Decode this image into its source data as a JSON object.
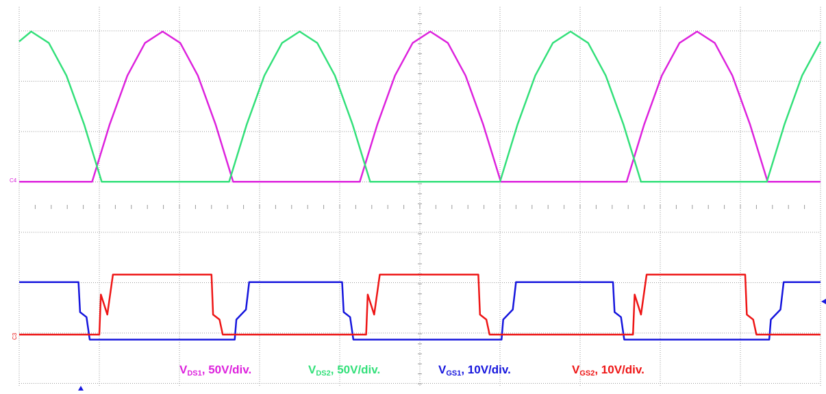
{
  "chart_data": {
    "type": "line",
    "xlim": [
      0,
      10
    ],
    "ylim": [
      -205,
      176
    ],
    "y2lim": [
      -10.5,
      65.8
    ],
    "grid": true,
    "channel_markers": [
      {
        "text": "C4",
        "color": "#d81ed8"
      },
      {
        "text": "C3",
        "color": "#e81010"
      }
    ],
    "series": [
      {
        "name": {
          "base": "V",
          "sub": "DS1",
          "rest": ", 50V/div."
        },
        "color": "#dd22dd",
        "x": [
          0,
          0.91,
          1.13,
          1.35,
          1.57,
          1.79,
          2.01,
          2.23,
          2.45,
          2.67,
          4.25,
          4.47,
          4.69,
          4.91,
          5.13,
          5.35,
          5.57,
          5.79,
          6.01,
          7.58,
          7.8,
          8.02,
          8.24,
          8.46,
          8.68,
          8.9,
          9.12,
          9.34,
          10
        ],
        "values": [
          0,
          0,
          57.4,
          106,
          138.6,
          150,
          138.6,
          106,
          57.4,
          0,
          0,
          57.4,
          106,
          138.6,
          150,
          138.6,
          106,
          57.4,
          0,
          0,
          57.4,
          106,
          138.6,
          150,
          138.6,
          106,
          57.4,
          0,
          0
        ]
      },
      {
        "name": {
          "base": "V",
          "sub": "DS2",
          "rest": ", 50V/div."
        },
        "color": "#33e07a",
        "x": [
          0,
          0.15,
          0.37,
          0.59,
          0.81,
          1.03,
          2.62,
          2.84,
          3.06,
          3.28,
          3.5,
          3.72,
          3.94,
          4.16,
          4.38,
          6,
          6.22,
          6.44,
          6.66,
          6.88,
          7.1,
          7.32,
          7.54,
          7.76,
          9.33,
          9.55,
          9.77,
          10
        ],
        "values": [
          140,
          150,
          138.6,
          106,
          57.4,
          0,
          0,
          57.4,
          106,
          138.6,
          150,
          138.6,
          106,
          57.4,
          0,
          0,
          57.4,
          106,
          138.6,
          150,
          138.6,
          106,
          57.4,
          0,
          0,
          57.4,
          106,
          140
        ]
      },
      {
        "name": {
          "base": "V",
          "sub": "GS1",
          "rest": ", 10V/div."
        },
        "color": "#1515dd",
        "axis": "y2",
        "x": [
          0,
          0.74,
          0.76,
          0.84,
          0.88,
          2.69,
          2.71,
          2.83,
          2.87,
          4.03,
          4.05,
          4.13,
          4.17,
          6.02,
          6.04,
          6.16,
          6.2,
          7.41,
          7.43,
          7.51,
          7.55,
          9.36,
          9.38,
          9.5,
          9.54,
          10
        ],
        "values": [
          10.5,
          10.5,
          4.5,
          3.5,
          -1,
          -1,
          3,
          5,
          10.5,
          10.5,
          4.5,
          3.5,
          -1,
          -1,
          3,
          5,
          10.5,
          10.5,
          4.5,
          3.5,
          -1,
          -1,
          3,
          5,
          10.5,
          10.5
        ]
      },
      {
        "name": {
          "base": "V",
          "sub": "GS2",
          "rest": ", 10V/div."
        },
        "color": "#ee1515",
        "axis": "y2",
        "x": [
          0,
          1.0,
          1.02,
          1.1,
          1.17,
          2.4,
          2.42,
          2.5,
          2.54,
          4.33,
          4.35,
          4.43,
          4.5,
          5.73,
          5.75,
          5.83,
          5.87,
          7.66,
          7.68,
          7.76,
          7.83,
          9.06,
          9.08,
          9.16,
          9.2,
          10
        ],
        "values": [
          0,
          0,
          8,
          4,
          12,
          12,
          4,
          3,
          0,
          0,
          8,
          4,
          12,
          12,
          4,
          3,
          0,
          0,
          8,
          4,
          12,
          12,
          4,
          3,
          0,
          0
        ]
      }
    ]
  }
}
